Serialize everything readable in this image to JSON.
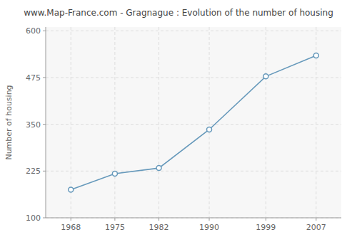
{
  "chart_data": {
    "type": "line",
    "title": "www.Map-France.com - Gragnague : Evolution of the number of housing",
    "ylabel": "Number of housing",
    "x": [
      1968,
      1975,
      1982,
      1990,
      1999,
      2007
    ],
    "values": [
      175,
      218,
      233,
      336,
      478,
      534
    ],
    "color": "#6699bb",
    "marker": "circle",
    "xlim": [
      1964,
      2011
    ],
    "ylim": [
      100,
      610
    ],
    "xticks": [
      1968,
      1975,
      1982,
      1990,
      1999,
      2007
    ],
    "yticks": [
      100,
      225,
      350,
      475,
      600
    ],
    "grid": true
  }
}
